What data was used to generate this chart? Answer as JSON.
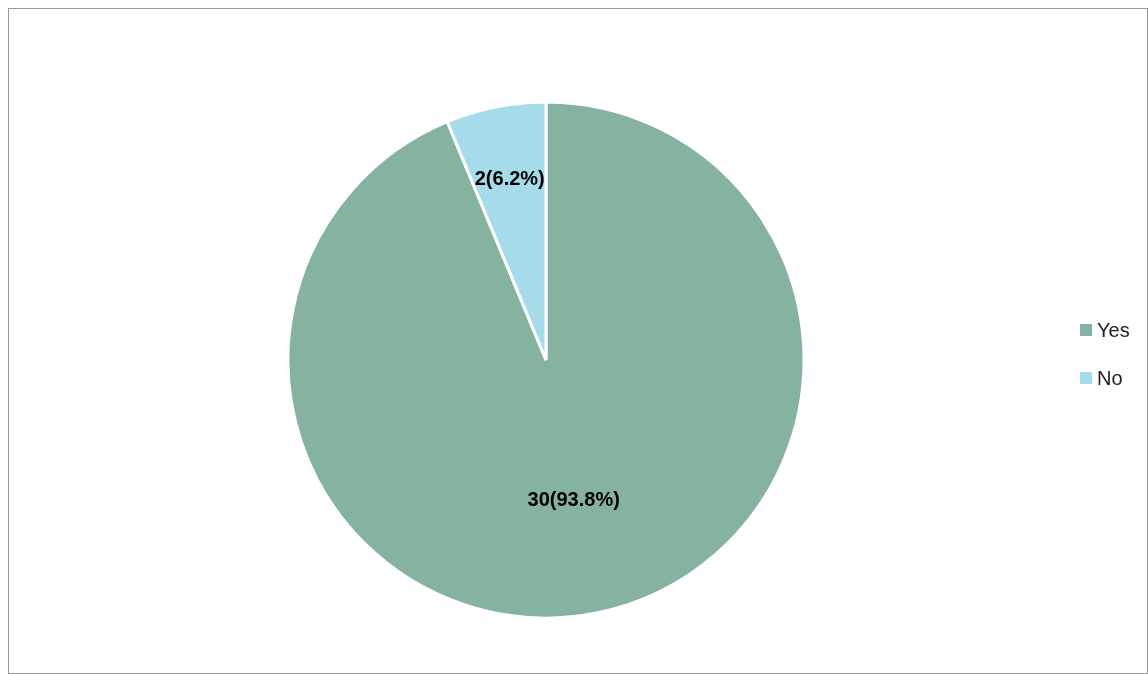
{
  "chart_data": {
    "type": "pie",
    "categories": [
      "Yes",
      "No"
    ],
    "values": [
      30,
      2
    ],
    "colors": [
      "#86b3a0",
      "#a6dcea"
    ],
    "value_labels": [
      "30(93.8%)",
      "2(6.2%)"
    ],
    "legend": "right"
  }
}
